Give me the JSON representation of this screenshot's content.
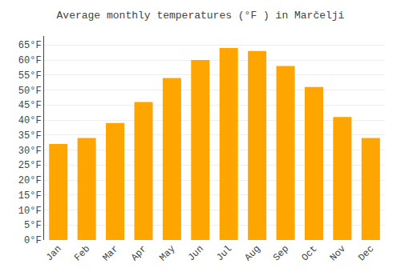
{
  "chart_data": {
    "type": "bar",
    "title": "Average monthly temperatures (°F ) in Marčelji",
    "categories": [
      "Jan",
      "Feb",
      "Mar",
      "Apr",
      "May",
      "Jun",
      "Jul",
      "Aug",
      "Sep",
      "Oct",
      "Nov",
      "Dec"
    ],
    "values": [
      32,
      34,
      39,
      46,
      54,
      60,
      64,
      63,
      58,
      51,
      41,
      34
    ],
    "color": "#FFA500",
    "ylim": [
      0,
      68
    ],
    "yticks": [
      {
        "value": 0,
        "label": "0°F"
      },
      {
        "value": 5,
        "label": "5°F"
      },
      {
        "value": 10,
        "label": "10°F"
      },
      {
        "value": 15,
        "label": "15°F"
      },
      {
        "value": 20,
        "label": "20°F"
      },
      {
        "value": 25,
        "label": "25°F"
      },
      {
        "value": 30,
        "label": "30°F"
      },
      {
        "value": 35,
        "label": "35°F"
      },
      {
        "value": 40,
        "label": "40°F"
      },
      {
        "value": 45,
        "label": "45°F"
      },
      {
        "value": 50,
        "label": "50°F"
      },
      {
        "value": 55,
        "label": "55°F"
      },
      {
        "value": 60,
        "label": "60°F"
      },
      {
        "value": 65,
        "label": "65°F"
      }
    ],
    "grid": true
  }
}
